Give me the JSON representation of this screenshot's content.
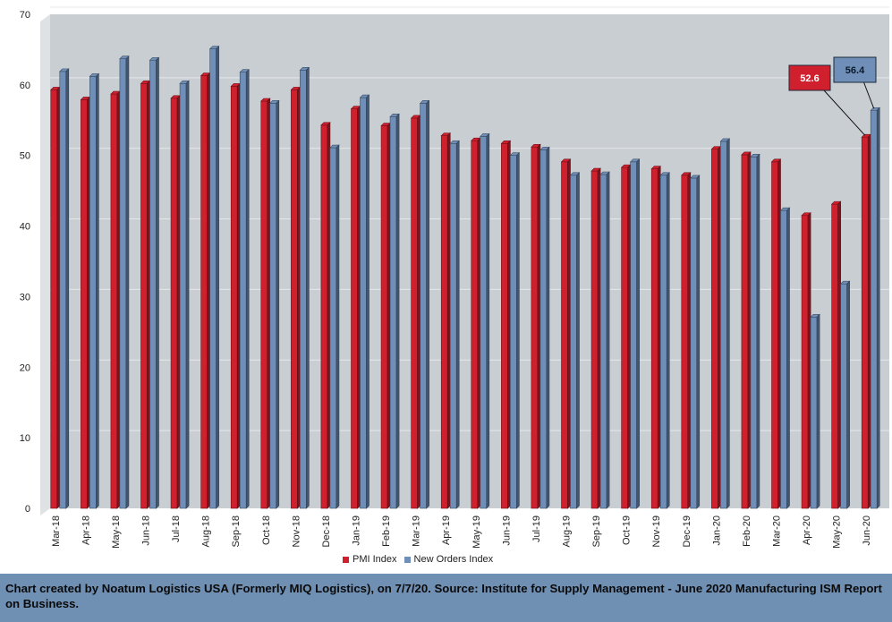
{
  "chart_data": {
    "type": "bar",
    "categories": [
      "Mar-18",
      "Apr-18",
      "May-18",
      "Jun-18",
      "Jul-18",
      "Aug-18",
      "Sep-18",
      "Oct-18",
      "Nov-18",
      "Dec-18",
      "Jan-19",
      "Feb-19",
      "Mar-19",
      "Apr-19",
      "May-19",
      "Jun-19",
      "Jul-19",
      "Aug-19",
      "Sep-19",
      "Oct-19",
      "Nov-19",
      "Dec-19",
      "Jan-20",
      "Feb-20",
      "Mar-20",
      "Apr-20",
      "May-20",
      "Jun-20"
    ],
    "series": [
      {
        "name": "PMI Index",
        "color": "#d0202e",
        "values": [
          59.3,
          57.9,
          58.7,
          60.2,
          58.1,
          61.3,
          59.8,
          57.7,
          59.3,
          54.3,
          56.6,
          54.2,
          55.3,
          52.8,
          52.1,
          51.7,
          51.2,
          49.1,
          47.8,
          48.3,
          48.1,
          47.2,
          50.9,
          50.1,
          49.1,
          41.5,
          43.1,
          52.6
        ]
      },
      {
        "name": "New Orders Index",
        "color": "#6f8fb8",
        "values": [
          61.9,
          61.2,
          63.7,
          63.5,
          60.2,
          65.1,
          61.8,
          57.4,
          62.1,
          51.1,
          58.2,
          55.5,
          57.4,
          51.7,
          52.7,
          50.0,
          50.8,
          47.2,
          47.3,
          49.1,
          47.2,
          46.8,
          52.0,
          49.8,
          42.2,
          27.1,
          31.8,
          56.4
        ]
      }
    ],
    "ylim": [
      0,
      70
    ],
    "yticks": [
      0,
      10,
      20,
      30,
      40,
      50,
      60,
      70
    ],
    "grid": true,
    "legend_position": "bottom",
    "annotations": [
      {
        "series": "PMI Index",
        "category": "Jun-20",
        "label": "52.6"
      },
      {
        "series": "New Orders Index",
        "category": "Jun-20",
        "label": "56.4"
      }
    ]
  },
  "footer": {
    "text": "Chart created by Noatum Logistics USA (Formerly MIQ Logistics), on 7/7/20. Source: Institute for Supply Management - June 2020 Manufacturing ISM Report on Business."
  }
}
